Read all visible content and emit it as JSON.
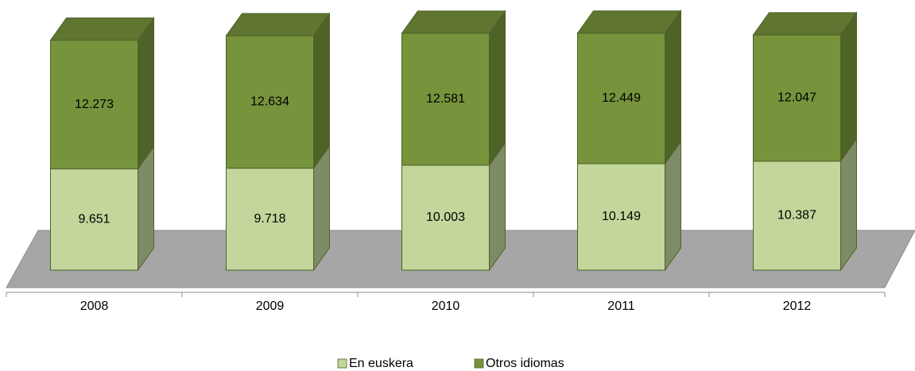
{
  "chart_data": {
    "type": "bar3d_stacked",
    "categories": [
      "2008",
      "2009",
      "2010",
      "2011",
      "2012"
    ],
    "series": [
      {
        "name": "En euskera",
        "color": "#c3d69b",
        "side_color": "#7f8a66",
        "values": [
          9651,
          9718,
          10003,
          10149,
          10387
        ],
        "value_labels": [
          "9.651",
          "9.718",
          "10.003",
          "10.149",
          "10.387"
        ]
      },
      {
        "name": "Otros idiomas",
        "color": "#77933c",
        "side_color": "#4f6228",
        "values": [
          12273,
          12634,
          12581,
          12449,
          12047
        ],
        "value_labels": [
          "12.273",
          "12.634",
          "12.581",
          "12.449",
          "12.047"
        ]
      }
    ],
    "ylim": [
      0,
      25000
    ],
    "legend": "bottom"
  }
}
